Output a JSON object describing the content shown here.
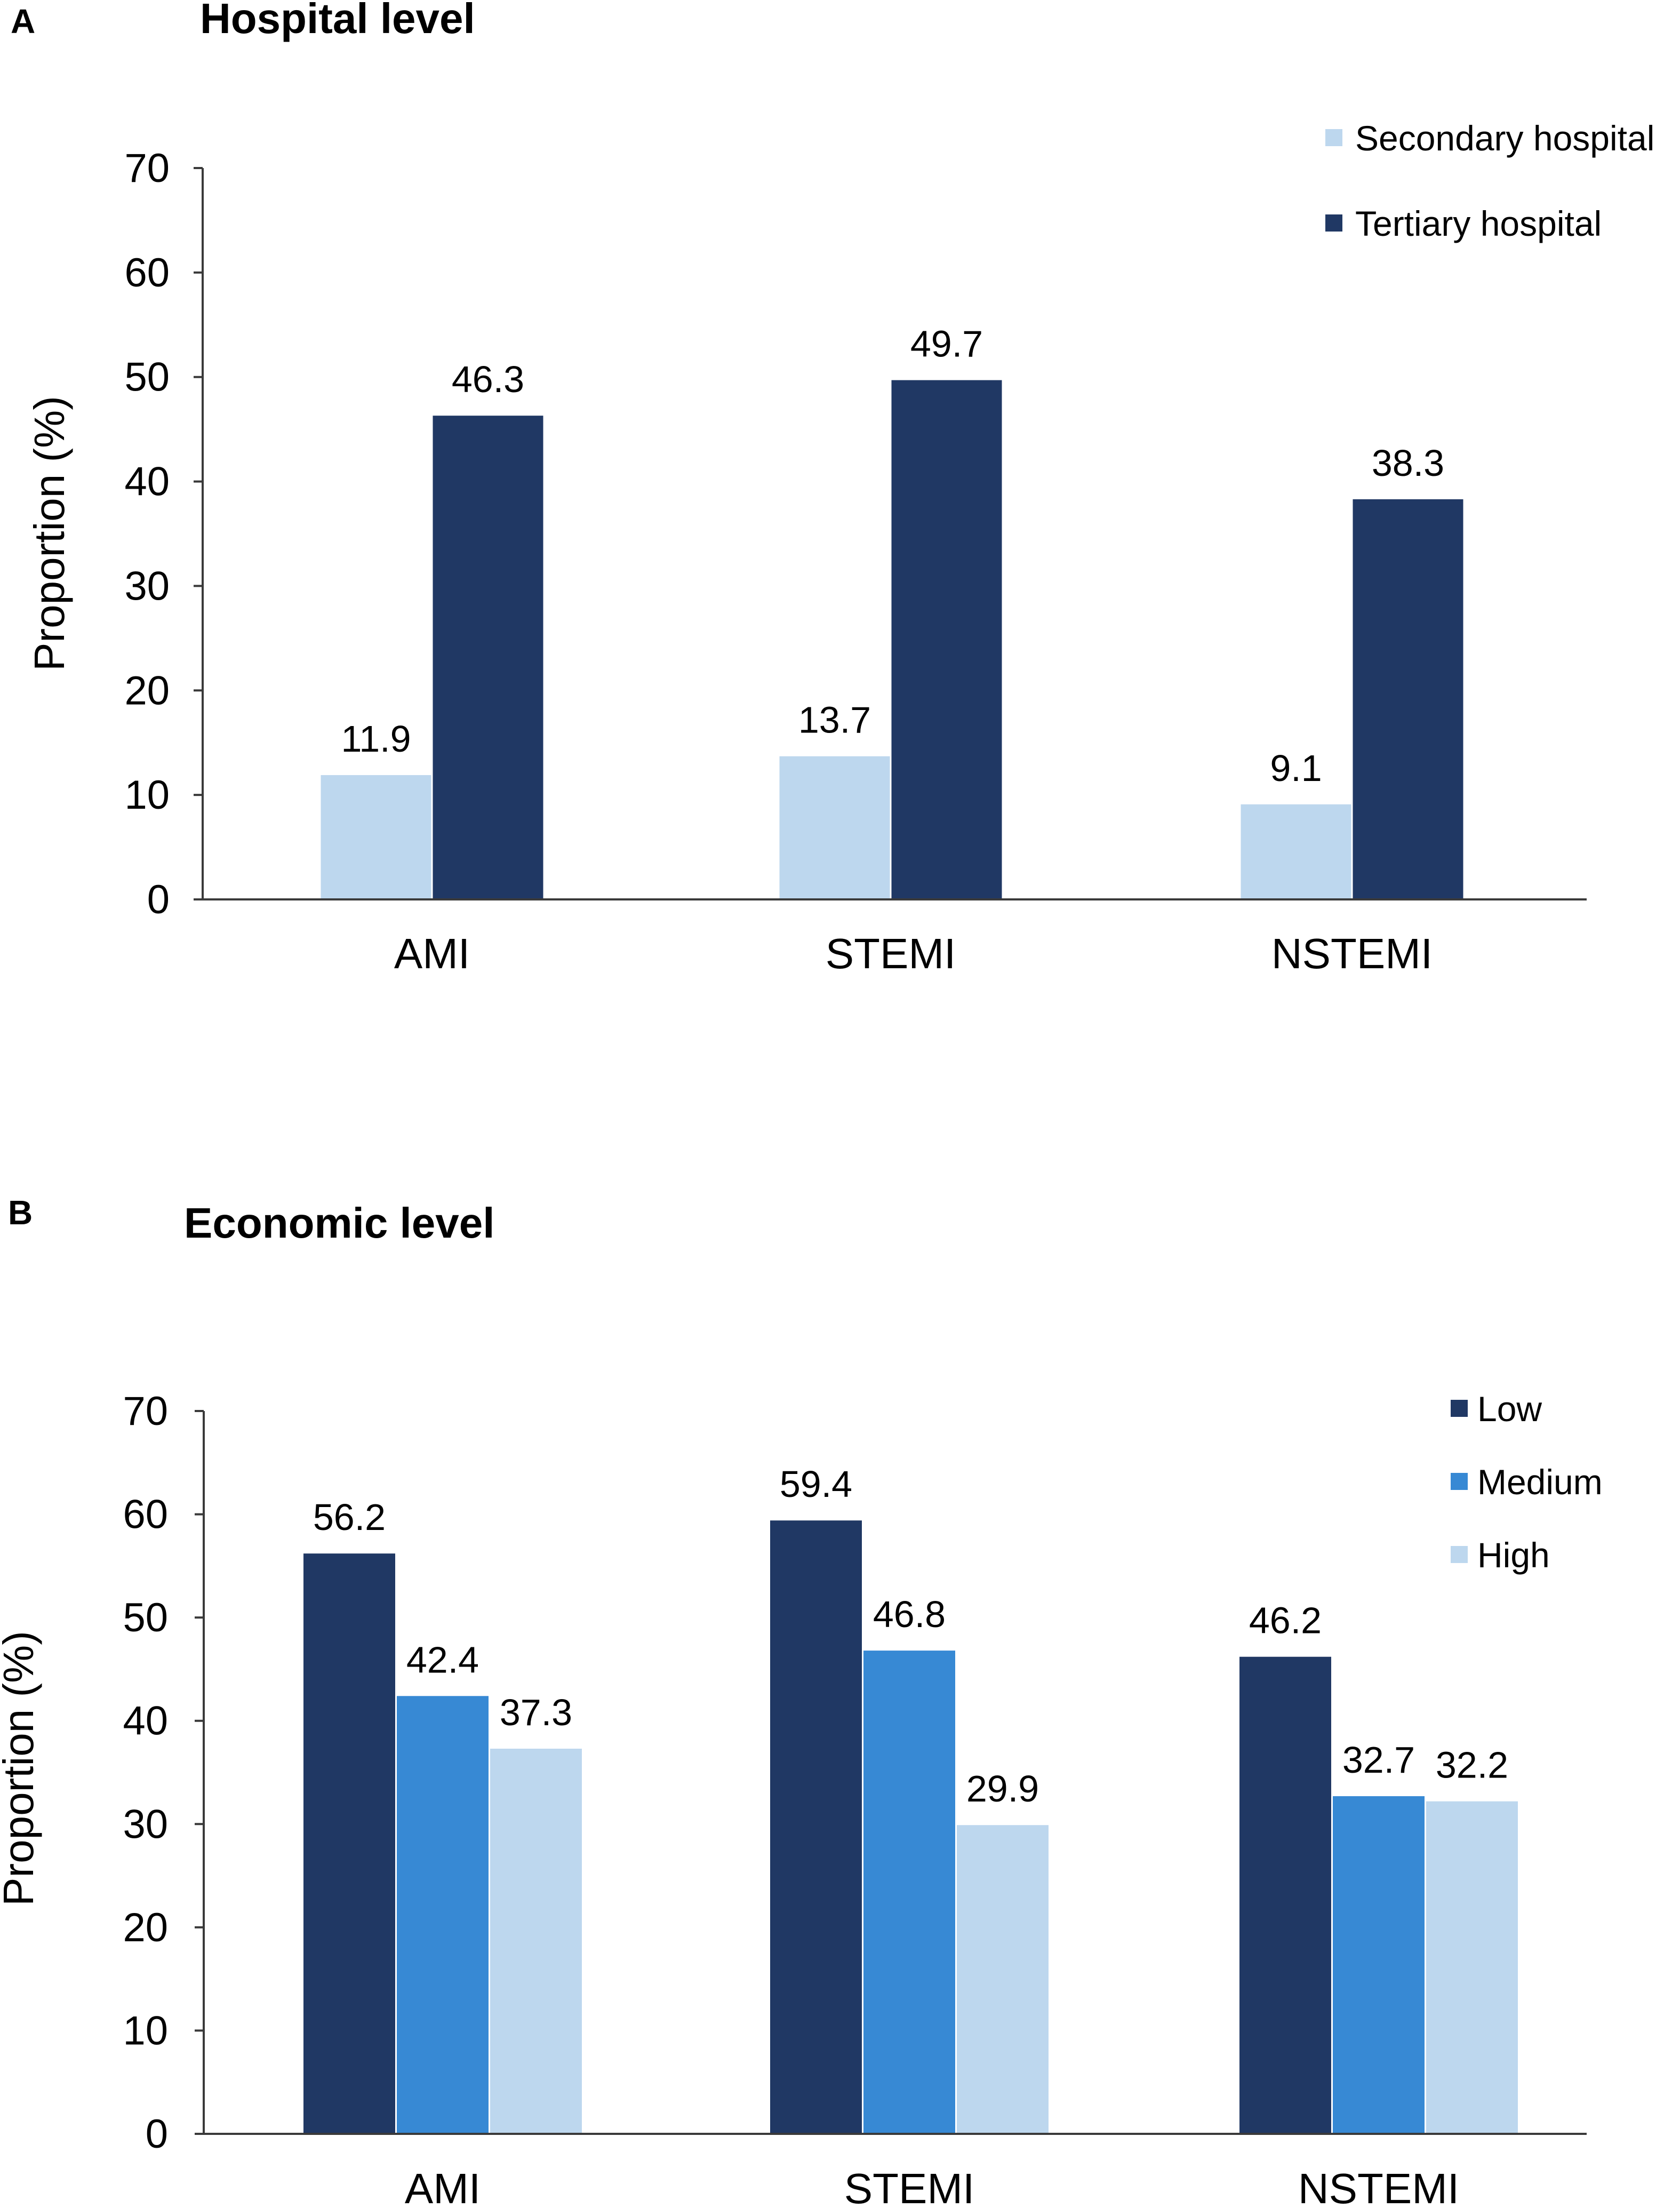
{
  "colors": {
    "secondary": "#bdd7ee",
    "tertiary": "#203864",
    "low": "#203864",
    "medium": "#3789d4",
    "high": "#bdd7ee"
  },
  "chart_data": [
    {
      "type": "bar",
      "panel_label": "A",
      "title": "Hospital level",
      "xlabel": "",
      "ylabel": "Proportion (%)",
      "ylim": [
        0,
        70
      ],
      "yticks": [
        "0",
        "10",
        "20",
        "30",
        "40",
        "50",
        "60",
        "70"
      ],
      "categories": [
        "AMI",
        "STEMI",
        "NSTEMI"
      ],
      "legend_position": "top-right",
      "series": [
        {
          "name": "Secondary hospital",
          "color_key": "secondary",
          "values": [
            11.9,
            13.7,
            9.1
          ],
          "labels": [
            "11.9",
            "13.7",
            "9.1"
          ]
        },
        {
          "name": "Tertiary hospital",
          "color_key": "tertiary",
          "values": [
            46.3,
            49.7,
            38.3
          ],
          "labels": [
            "46.3",
            "49.7",
            "38.3"
          ]
        }
      ]
    },
    {
      "type": "bar",
      "panel_label": "B",
      "title": "Economic level",
      "xlabel": "",
      "ylabel": "Proportion (%)",
      "ylim": [
        0,
        70
      ],
      "yticks": [
        "0",
        "10",
        "20",
        "30",
        "40",
        "50",
        "60",
        "70"
      ],
      "categories": [
        "AMI",
        "STEMI",
        "NSTEMI"
      ],
      "legend_position": "top-right",
      "series": [
        {
          "name": "Low",
          "color_key": "low",
          "values": [
            56.2,
            59.4,
            46.2
          ],
          "labels": [
            "56.2",
            "59.4",
            "46.2"
          ]
        },
        {
          "name": "Medium",
          "color_key": "medium",
          "values": [
            42.4,
            46.8,
            32.7
          ],
          "labels": [
            "42.4",
            "46.8",
            "32.7"
          ]
        },
        {
          "name": "High",
          "color_key": "high",
          "values": [
            37.3,
            29.9,
            32.2
          ],
          "labels": [
            "37.3",
            "29.9",
            "32.2"
          ]
        }
      ]
    }
  ]
}
